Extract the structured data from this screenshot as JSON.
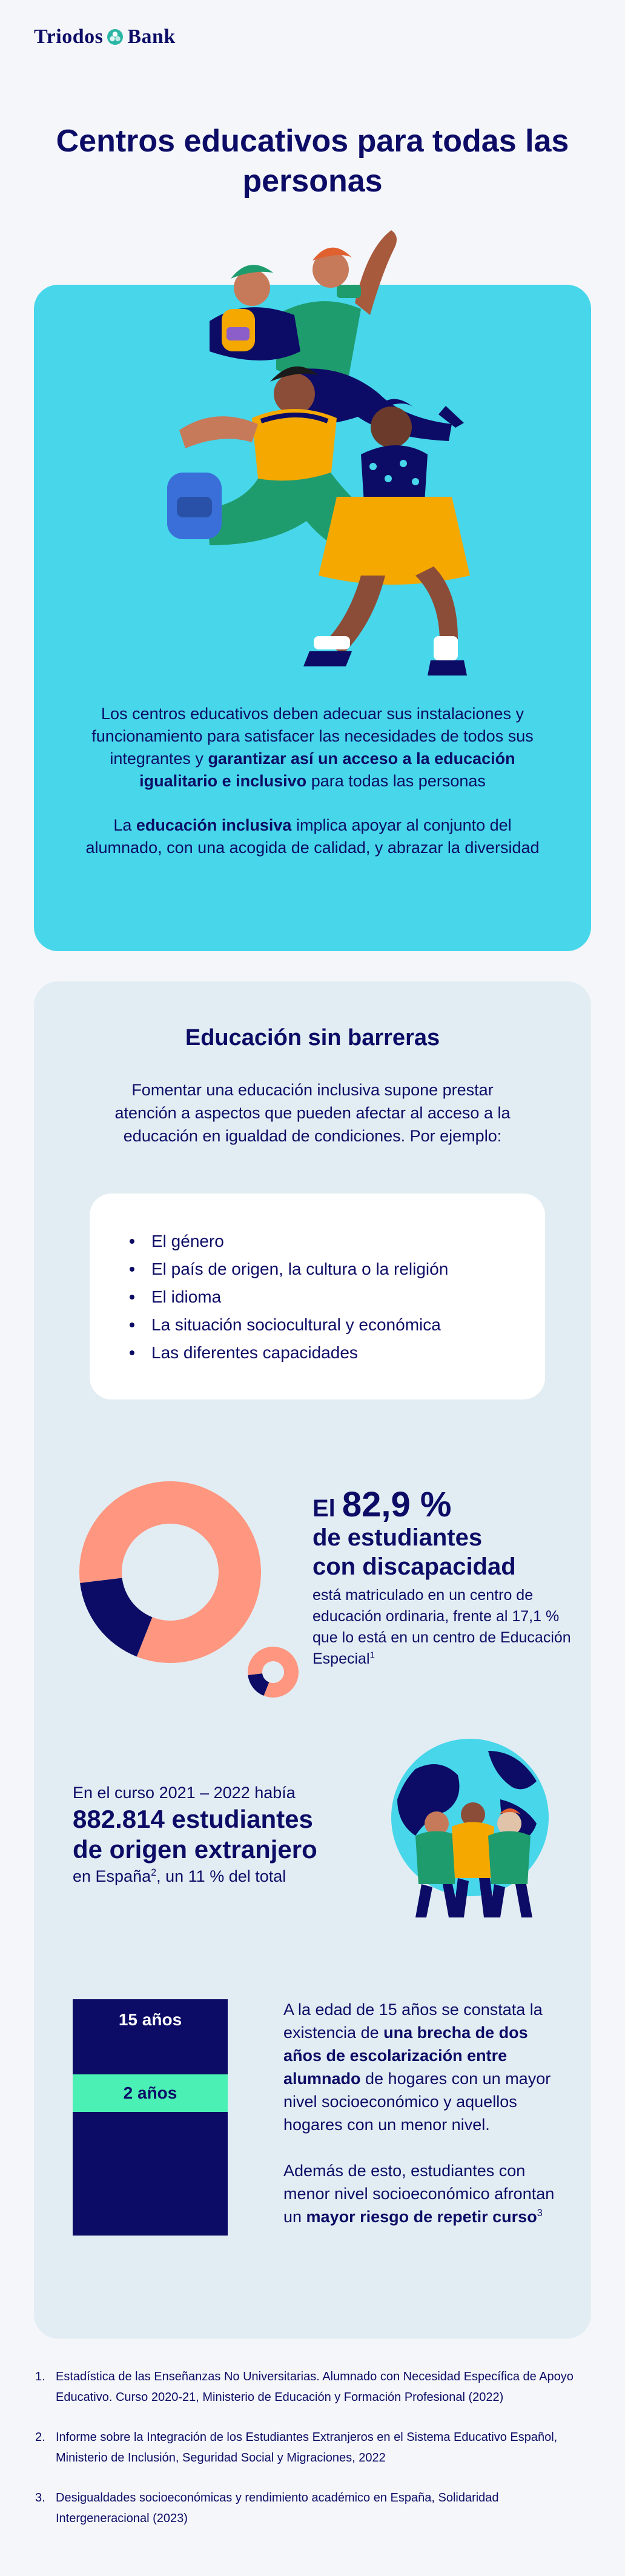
{
  "brand": {
    "name_part1": "Triodos",
    "name_part2": "Bank"
  },
  "title": "Centros educativos para todas las personas",
  "hero": {
    "p1_a": "Los centros educativos deben adecuar sus instalaciones y funcionamiento para satisfacer las necesidades de todos sus integrantes y ",
    "p1_b": "garantizar así un acceso a la educación igualitario e inclusivo",
    "p1_c": " para todas las personas",
    "p2_a": "La ",
    "p2_b": "educación inclusiva",
    "p2_c": " implica apoyar al conjunto del alumnado, con una acogida de calidad, y abrazar la diversidad"
  },
  "panel": {
    "title": "Educación sin barreras",
    "intro": "Fomentar una educación inclusiva supone prestar atención a aspectos que pueden afectar al acceso a la educación en igualdad de condiciones. Por ejemplo:",
    "factors": [
      "El género",
      "El país de origen, la cultura o la religión",
      "El idioma",
      "La situación sociocultural y económica",
      "Las diferentes capacidades"
    ]
  },
  "stat_disability": {
    "prefix": "El ",
    "value": "82,9 %",
    "line2": "de estudiantes",
    "line3": "con discapacidad",
    "description": "está matriculado en un centro de educación ordinaria, frente al 17,1 % que lo está en un centro de Educación Especial",
    "ref": "1",
    "ordinary_percent": 82.9,
    "special_percent": 17.1,
    "colors": {
      "ordinary": "#ff967f",
      "special": "#0c0c66"
    }
  },
  "stat_foreign": {
    "pre": "En el curso 2021 – 2022 había",
    "value_line1": "882.814 estudiantes",
    "value_line2": "de origen extranjero",
    "sub_a": "en España",
    "ref": "2",
    "sub_b": ", un 11 % del total"
  },
  "stat_gap": {
    "bar_top_label": "15 años",
    "bar_gap_label": "2 años",
    "p1_a": "A la edad de 15 años se constata la existencia de ",
    "p1_b": "una brecha de dos años de escolarización entre alumnado",
    "p1_c": " de hogares con un mayor nivel socioeconómico y aquellos hogares con un menor nivel.",
    "p2_a": "Además de esto, estudiantes con menor nivel socioeconómico afrontan un ",
    "p2_b": "mayor riesgo de repetir curso",
    "ref": "3"
  },
  "references": [
    {
      "n": "1.",
      "text": "Estadística de las Enseñanzas No Universitarias. Alumnado con Necesidad Específica de Apoyo Educativo. Curso 2020-21, Ministerio de Educación y Formación Profesional (2022)"
    },
    {
      "n": "2.",
      "text": "Informe sobre la Integración de los Estudiantes Extranjeros en el Sistema Educativo Español, Ministerio de Inclusión, Seguridad Social y Migraciones, 2022"
    },
    {
      "n": "3.",
      "text": "Desigualdades socioeconómicas y rendimiento académico en España, Solidaridad Intergeneracional (2023)"
    }
  ]
}
